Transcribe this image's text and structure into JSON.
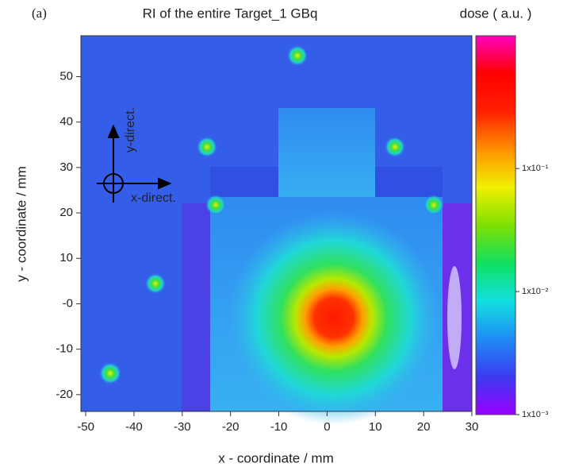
{
  "chart_data": {
    "type": "heatmap",
    "panel_label": "(a)",
    "title": "RI of the entire Target_1 GBq",
    "colorbar_label": "dose ( a.u. )",
    "xlabel": "x - coordinate / mm",
    "ylabel": "y - coordinate / mm",
    "annotations": [
      "x-direct.",
      "y-direct."
    ],
    "xlim": [
      -51,
      30
    ],
    "xticks": [
      -50,
      -40,
      -30,
      -20,
      -10,
      0,
      10,
      20,
      30
    ],
    "ylim": [
      -23.7,
      59
    ],
    "yticks": [
      -20,
      -10,
      {
        "value": 0,
        "label": "-0"
      },
      10,
      20,
      30,
      40,
      50
    ],
    "colorbar_lim": [
      0.001,
      1.2
    ],
    "colorbar_log": true,
    "colorbar_ticks": [
      {
        "value": 0.001,
        "label": "1x10⁻³"
      },
      {
        "value": 0.01,
        "label": "1x10⁻²"
      },
      {
        "value": 0.1,
        "label": "1x10⁻¹"
      }
    ],
    "colorscale": [
      "#9a00ff",
      "#3b3bf0",
      "#1f8cf5",
      "#12e0e0",
      "#10e060",
      "#7ee000",
      "#f0f000",
      "#ff9000",
      "#ff2000",
      "#ff0000",
      "#ff00c0"
    ]
  }
}
